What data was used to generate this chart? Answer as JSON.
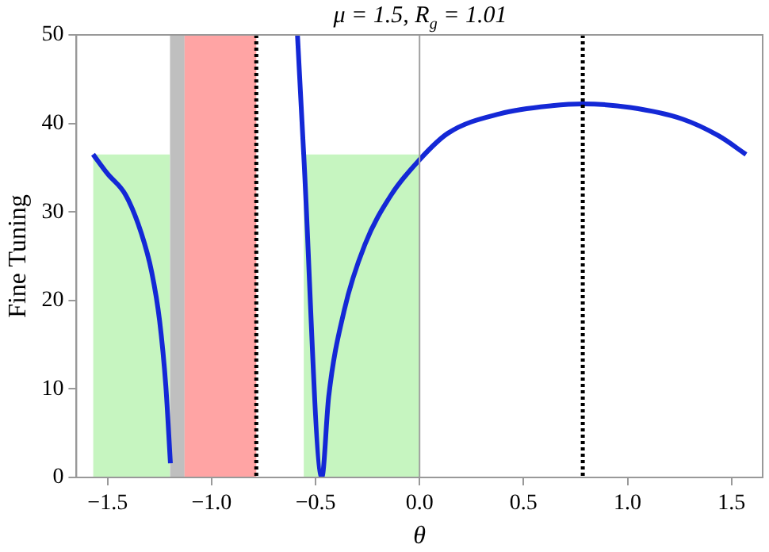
{
  "chart_data": {
    "type": "line",
    "title": "μ = 1.5, R$_{g}$ = 1.01",
    "xlabel": "θ",
    "ylabel": "Fine Tuning",
    "xlim": [
      -1.65,
      1.65
    ],
    "ylim": [
      0,
      50
    ],
    "xticks": [
      {
        "value": -1.5,
        "label": "−1.5"
      },
      {
        "value": -1,
        "label": "−1.0"
      },
      {
        "value": -0.5,
        "label": "−0.5"
      },
      {
        "value": 0,
        "label": "0.0"
      },
      {
        "value": 0.5,
        "label": "0.5"
      },
      {
        "value": 1,
        "label": "1.0"
      },
      {
        "value": 1.5,
        "label": "1.5"
      }
    ],
    "yticks": [
      0,
      10,
      20,
      30,
      40,
      50
    ],
    "series": [
      {
        "type": "area",
        "color": "#c6f5c0",
        "x": [
          -1.57,
          -1.2
        ],
        "values": [
          36.5,
          36.5
        ]
      },
      {
        "type": "area",
        "color": "#c6f5c0",
        "x": [
          -0.557,
          0
        ],
        "values": [
          36.5,
          36.5
        ]
      },
      {
        "color": "#1428d6",
        "x": [
          -1.57,
          -1.5,
          -1.413,
          -1.338,
          -1.288,
          -1.25,
          -1.22,
          -1.198
        ],
        "values": [
          36.5,
          34.3,
          31.9,
          27.6,
          23.2,
          17.7,
          10.3,
          1.6
        ]
      },
      {
        "color": "#1428d6",
        "x": [
          -0.587,
          -0.557,
          -0.47,
          -0.437,
          -0.362,
          -0.263,
          -0.137,
          0,
          0.137,
          0.388,
          0.638,
          0.788,
          1.013,
          1.263,
          1.438,
          1.57
        ],
        "values": [
          50,
          36.5,
          0,
          9.1,
          18.9,
          26.3,
          31.9,
          35.9,
          38.9,
          41.1,
          42.0,
          42.2,
          41.8,
          40.5,
          38.6,
          36.5
        ]
      }
    ],
    "bands": [
      {
        "axis": "x",
        "from": -1.2,
        "to": -1.13,
        "color": "#b4b4b4"
      },
      {
        "axis": "x",
        "from": -1.13,
        "to": -0.785,
        "color": "#ff9494"
      }
    ],
    "ref_lines": [
      {
        "axis": "x",
        "value": 0,
        "color": "#a0a0a0",
        "line_style": "solid"
      },
      {
        "axis": "x",
        "value": -0.785,
        "color": "#000000",
        "line_style": "dotted"
      },
      {
        "axis": "x",
        "value": 0.785,
        "color": "#000000",
        "line_style": "dotted"
      }
    ]
  }
}
